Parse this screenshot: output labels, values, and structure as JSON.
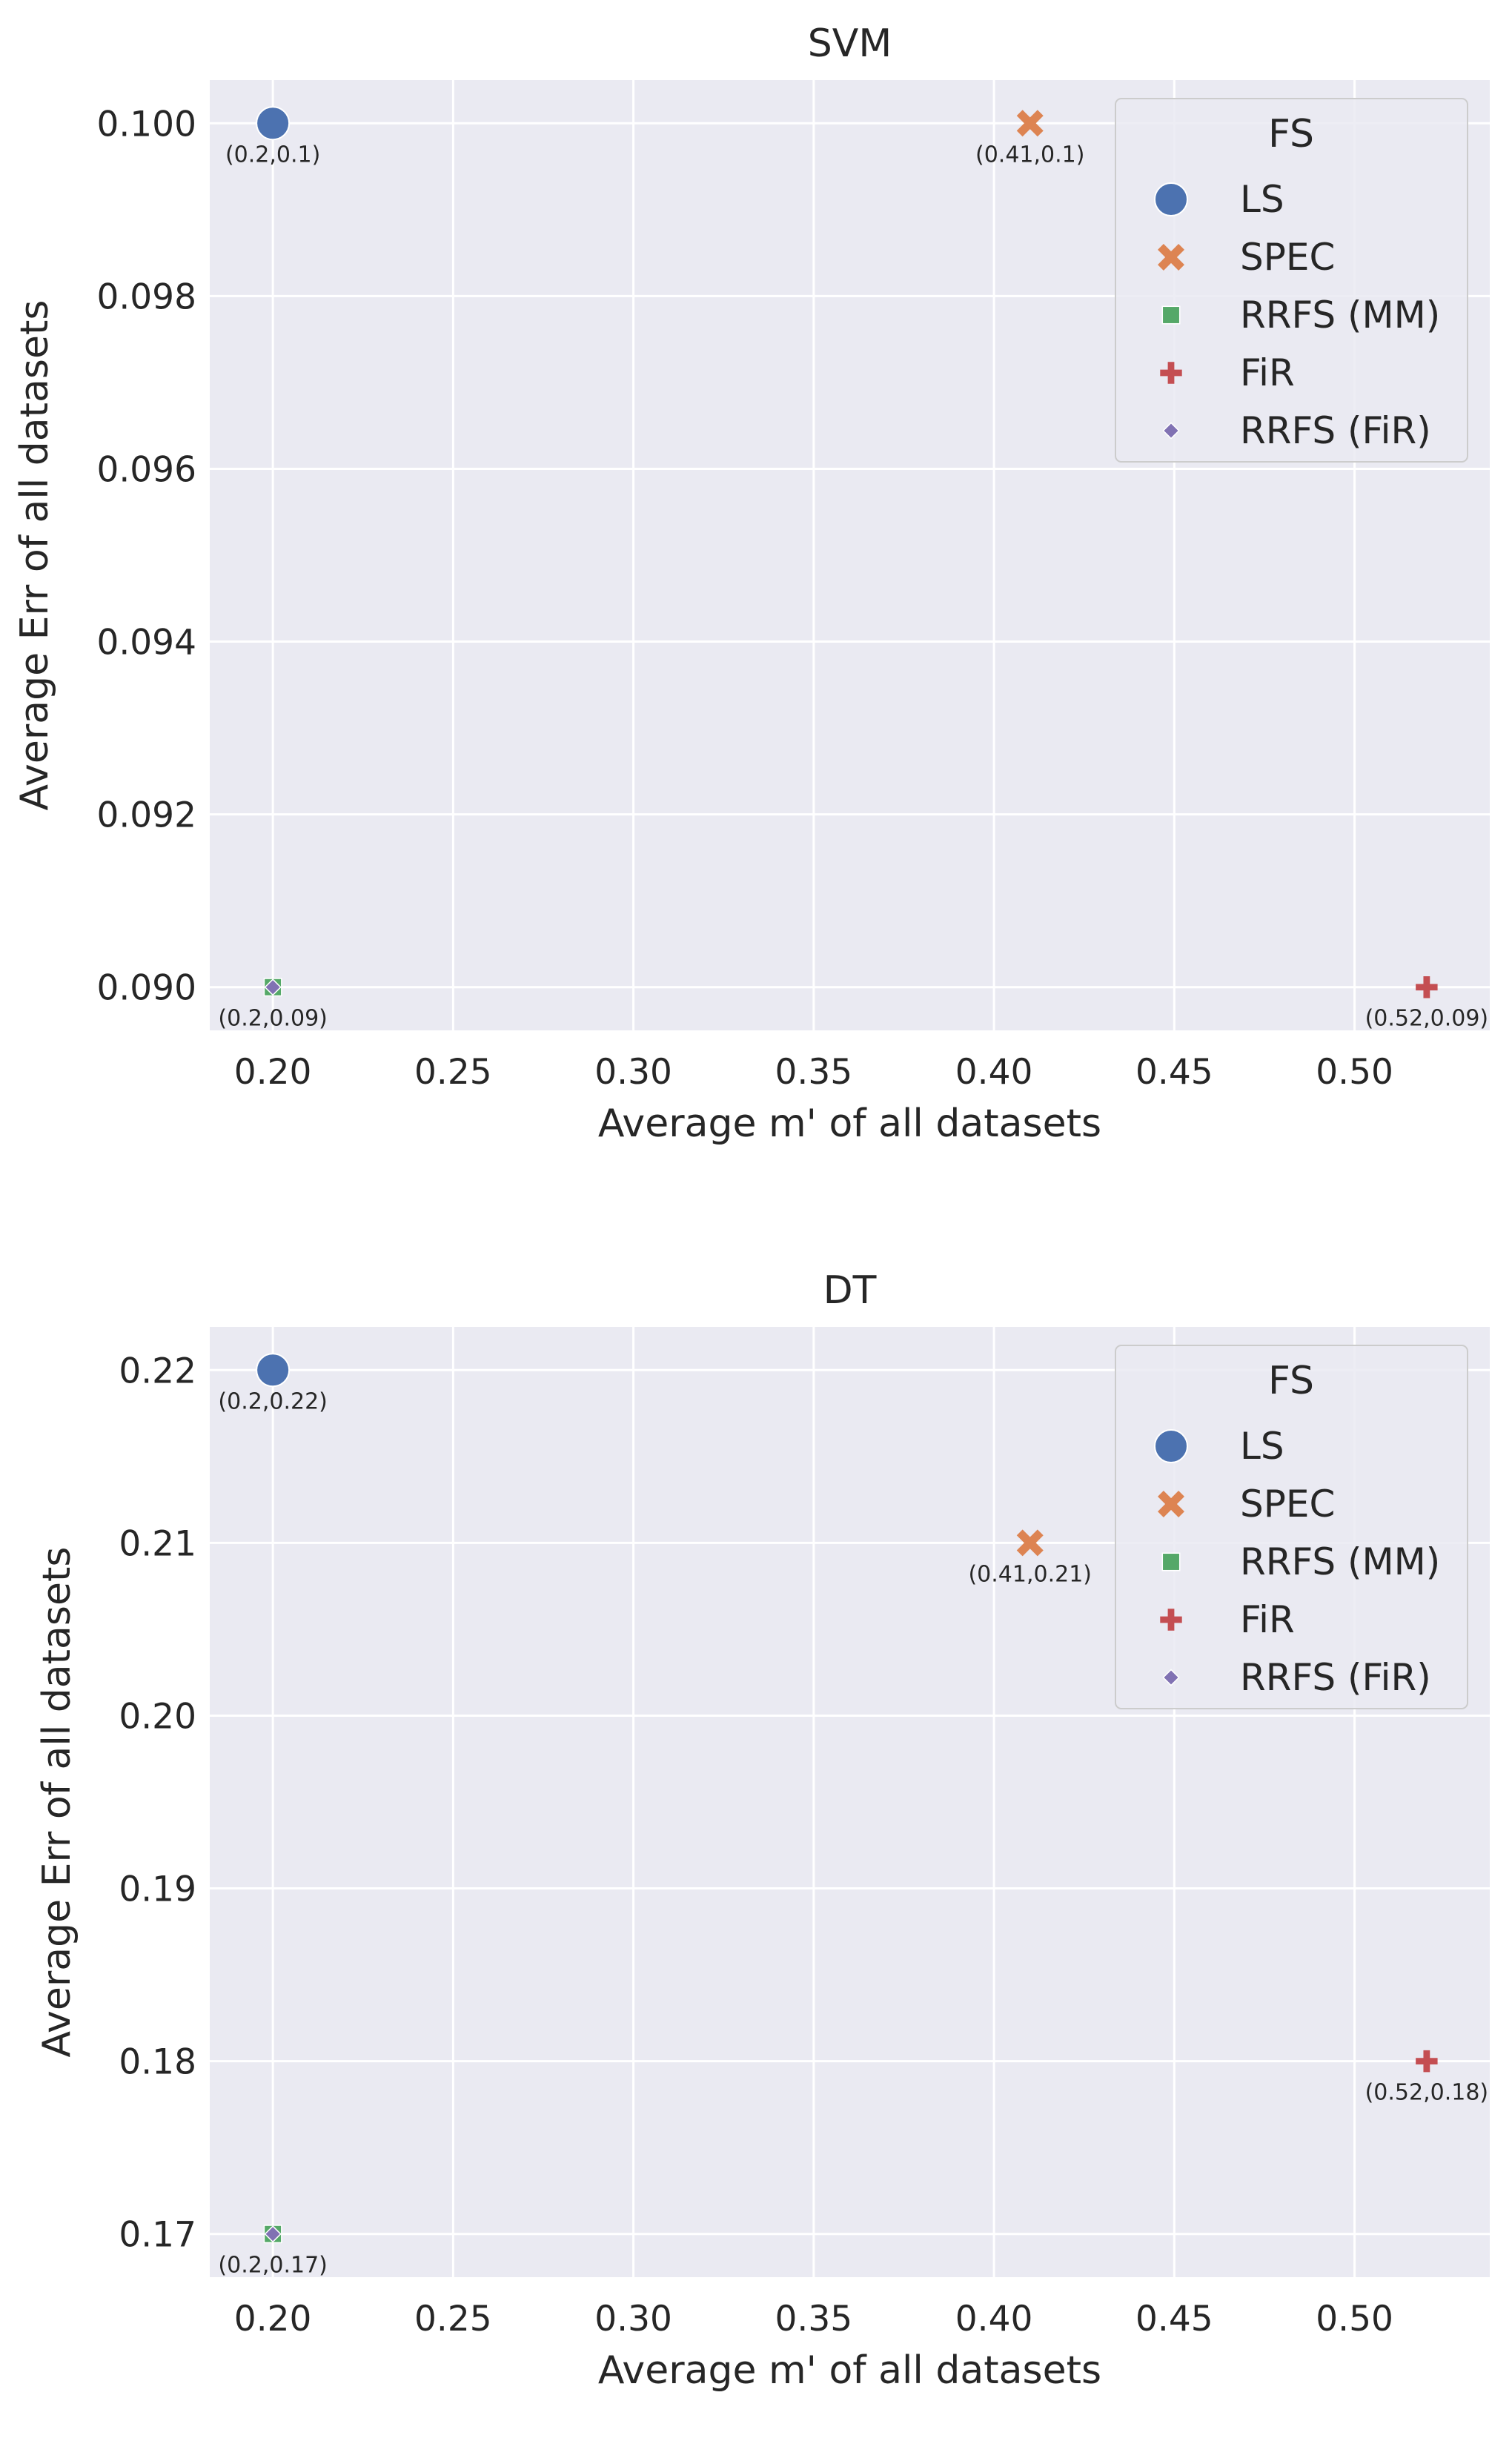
{
  "chart_data": [
    {
      "type": "scatter",
      "title": "SVM",
      "xlabel": "Average m' of all datasets",
      "ylabel": "Average Err of all datasets",
      "xlim": [
        0.1825,
        0.5375
      ],
      "ylim": [
        0.0895,
        0.1005
      ],
      "xticks": [
        "0.20",
        "0.25",
        "0.30",
        "0.35",
        "0.40",
        "0.45",
        "0.50"
      ],
      "yticks": [
        "0.090",
        "0.092",
        "0.094",
        "0.096",
        "0.098",
        "0.100"
      ],
      "grid": true,
      "legend": {
        "title": "FS",
        "position": "top-right",
        "entries": [
          "LS",
          "SPEC",
          "RRFS (MM)",
          "FiR",
          "RRFS (FiR)"
        ]
      },
      "series": [
        {
          "name": "LS",
          "marker": "circle",
          "color": "#4c72b0",
          "x": 0.2,
          "y": 0.1,
          "label": "(0.2,0.1)"
        },
        {
          "name": "SPEC",
          "marker": "x",
          "color": "#dd8452",
          "x": 0.41,
          "y": 0.1,
          "label": "(0.41,0.1)"
        },
        {
          "name": "RRFS (MM)",
          "marker": "square",
          "color": "#55a868",
          "x": 0.2,
          "y": 0.09,
          "label": "(0.2,0.09)"
        },
        {
          "name": "FiR",
          "marker": "plus",
          "color": "#c44e52",
          "x": 0.52,
          "y": 0.09,
          "label": "(0.52,0.09)"
        },
        {
          "name": "RRFS (FiR)",
          "marker": "diamond",
          "color": "#8172b3",
          "x": 0.2,
          "y": 0.09,
          "label": ""
        }
      ]
    },
    {
      "type": "scatter",
      "title": "DT",
      "xlabel": "Average m' of all datasets",
      "ylabel": "Average Err of all datasets",
      "xlim": [
        0.1825,
        0.5375
      ],
      "ylim": [
        0.1675,
        0.2225
      ],
      "xticks": [
        "0.20",
        "0.25",
        "0.30",
        "0.35",
        "0.40",
        "0.45",
        "0.50"
      ],
      "yticks": [
        "0.17",
        "0.18",
        "0.19",
        "0.20",
        "0.21",
        "0.22"
      ],
      "grid": true,
      "legend": {
        "title": "FS",
        "position": "top-right",
        "entries": [
          "LS",
          "SPEC",
          "RRFS (MM)",
          "FiR",
          "RRFS (FiR)"
        ]
      },
      "series": [
        {
          "name": "LS",
          "marker": "circle",
          "color": "#4c72b0",
          "x": 0.2,
          "y": 0.22,
          "label": "(0.2,0.22)"
        },
        {
          "name": "SPEC",
          "marker": "x",
          "color": "#dd8452",
          "x": 0.41,
          "y": 0.21,
          "label": "(0.41,0.21)"
        },
        {
          "name": "RRFS (MM)",
          "marker": "square",
          "color": "#55a868",
          "x": 0.2,
          "y": 0.17,
          "label": "(0.2,0.17)"
        },
        {
          "name": "FiR",
          "marker": "plus",
          "color": "#c44e52",
          "x": 0.52,
          "y": 0.18,
          "label": "(0.52,0.18)"
        },
        {
          "name": "RRFS (FiR)",
          "marker": "diamond",
          "color": "#8172b3",
          "x": 0.2,
          "y": 0.17,
          "label": ""
        }
      ]
    }
  ],
  "colors": {
    "plot_background": "#eaeaf2",
    "grid": "#ffffff",
    "text": "#262626"
  }
}
